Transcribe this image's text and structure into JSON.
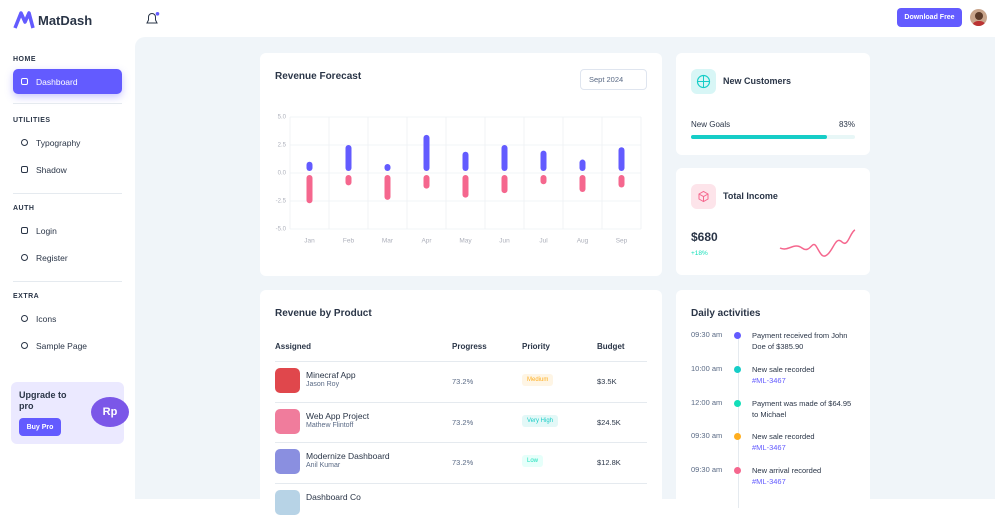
{
  "header": {
    "brand": "MatDash",
    "download": "Download Free"
  },
  "sidebar": {
    "sections": [
      {
        "title": "HOME",
        "items": [
          "Dashboard"
        ]
      },
      {
        "title": "UTILITIES",
        "items": [
          "Typography",
          "Shadow"
        ]
      },
      {
        "title": "AUTH",
        "items": [
          "Login",
          "Register"
        ]
      },
      {
        "title": "EXTRA",
        "items": [
          "Icons",
          "Sample Page"
        ]
      }
    ],
    "upgrade": {
      "title": "Upgrade to pro",
      "button": "Buy Pro",
      "badge": "Rp"
    }
  },
  "chart_data": {
    "type": "bar",
    "title": "Revenue Forecast",
    "period": "Sept 2024",
    "categories": [
      "Jan",
      "Feb",
      "Mar",
      "Apr",
      "May",
      "Jun",
      "Jul",
      "Aug",
      "Sep"
    ],
    "series": [
      {
        "color": "#635bff",
        "values": [
          1.0,
          2.5,
          0.8,
          3.4,
          1.9,
          2.5,
          2.0,
          1.2,
          2.3
        ]
      },
      {
        "color": "#f5678e",
        "values": [
          -2.7,
          -1.1,
          -2.4,
          -1.4,
          -2.2,
          -1.8,
          -1.0,
          -1.7,
          -1.3
        ]
      }
    ],
    "ylim": [
      -5,
      5
    ],
    "yticks": [
      {
        "value": 5,
        "label": "5.0"
      },
      {
        "value": 2.5,
        "label": "2.5"
      },
      {
        "value": 0,
        "label": "0.0"
      },
      {
        "value": -2.5,
        "label": "-2.5"
      },
      {
        "value": -5,
        "label": "-5.0"
      }
    ],
    "grid": true
  },
  "new_customers": {
    "title": "New Customers",
    "goal_label": "New Goals",
    "goal_value": "83%"
  },
  "total_income": {
    "title": "Total Income",
    "amount": "$680",
    "change": "+18%"
  },
  "revenue_by_product": {
    "title": "Revenue by Product",
    "columns": [
      "Assigned",
      "Progress",
      "Priority",
      "Budget"
    ],
    "rows": [
      {
        "name": "Minecraf App",
        "person": "Jason Roy",
        "progress": "73.2%",
        "priority": "Medium",
        "budget": "$3.5K"
      },
      {
        "name": "Web App Project",
        "person": "Mathew Flintoff",
        "progress": "73.2%",
        "priority": "Very High",
        "budget": "$24.5K"
      },
      {
        "name": "Modernize Dashboard",
        "person": "Anil Kumar",
        "progress": "73.2%",
        "priority": "Low",
        "budget": "$12.8K"
      },
      {
        "name": "Dashboard Co"
      }
    ]
  },
  "daily_activities": {
    "title": "Daily activities",
    "items": [
      {
        "time": "09:30 am",
        "text": "Payment received from John Doe of $385.90"
      },
      {
        "time": "10:00 am",
        "text": "New sale recorded",
        "link": "#ML-3467"
      },
      {
        "time": "12:00 am",
        "text": "Payment was made of $64.95 to Michael"
      },
      {
        "time": "09:30 am",
        "text": "New sale recorded",
        "link": "#ML-3467"
      },
      {
        "time": "09:30 am",
        "text": "New arrival recorded",
        "link": "#ML-3467"
      }
    ]
  }
}
